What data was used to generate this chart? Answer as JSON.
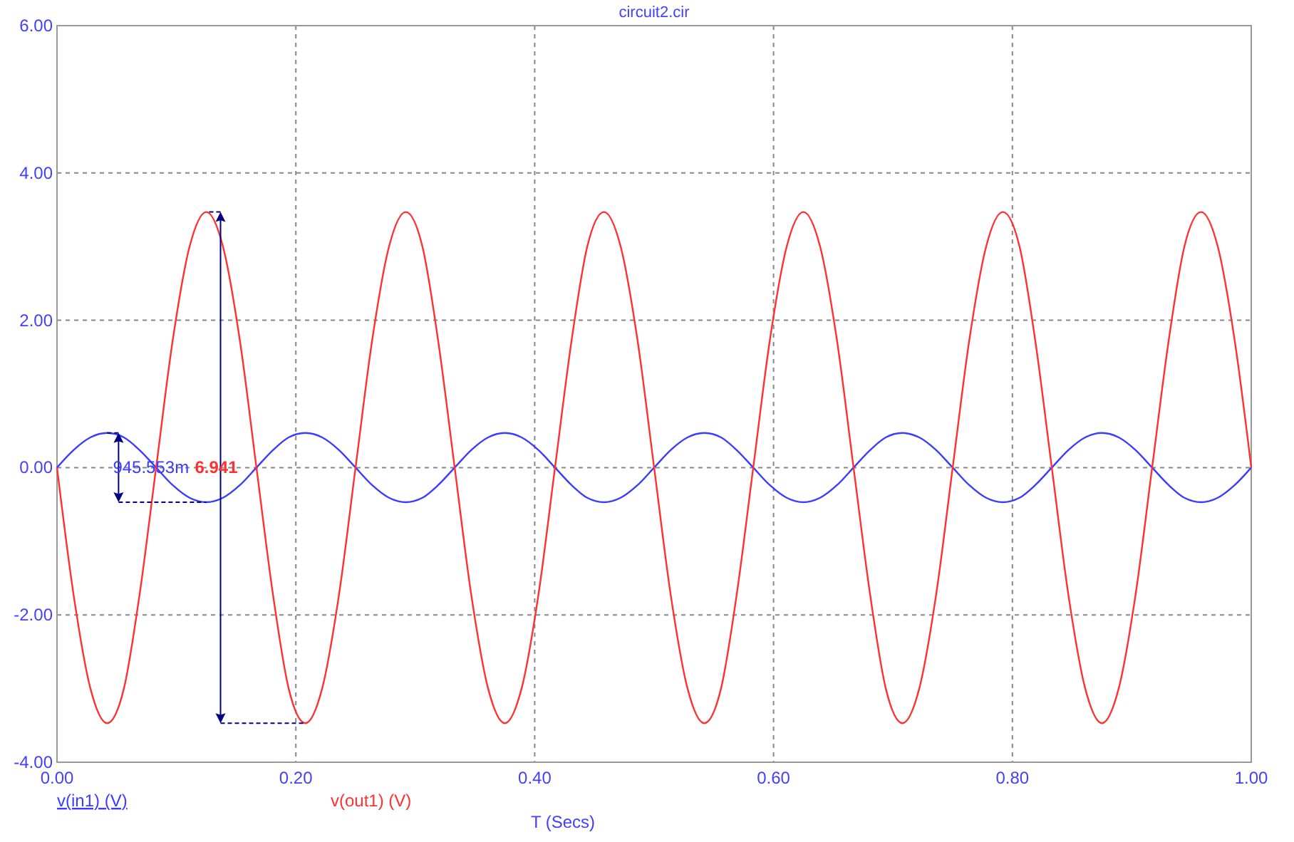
{
  "chart_data": {
    "type": "line",
    "title": "circuit2.cir",
    "xlabel": "T (Secs)",
    "x": [
      0,
      0.014,
      0.028,
      0.042,
      0.056,
      0.069,
      0.083,
      0.097,
      0.111,
      0.125,
      0.139,
      0.153,
      0.167,
      0.181,
      0.194,
      0.208,
      0.222,
      0.236,
      0.25,
      0.264,
      0.278,
      0.292,
      0.306,
      0.319,
      0.333,
      0.347,
      0.361,
      0.375,
      0.389,
      0.403,
      0.417,
      0.431,
      0.444,
      0.458,
      0.472,
      0.486,
      0.5,
      0.514,
      0.528,
      0.542,
      0.556,
      0.569,
      0.583,
      0.597,
      0.611,
      0.625,
      0.639,
      0.653,
      0.667,
      0.681,
      0.694,
      0.708,
      0.722,
      0.736,
      0.75,
      0.764,
      0.778,
      0.792,
      0.806,
      0.819,
      0.833,
      0.847,
      0.861,
      0.875,
      0.889,
      0.903,
      0.917,
      0.931,
      0.944,
      0.958,
      0.972,
      0.986,
      1
    ],
    "series": [
      {
        "name": "v(in1) (V)",
        "color": "#3c3cff",
        "values": [
          0,
          0.24,
          0.41,
          0.47,
          0.41,
          0.24,
          0,
          -0.24,
          -0.41,
          -0.47,
          -0.41,
          -0.24,
          0,
          0.24,
          0.41,
          0.47,
          0.41,
          0.24,
          0,
          -0.24,
          -0.41,
          -0.47,
          -0.41,
          -0.24,
          0,
          0.24,
          0.41,
          0.47,
          0.41,
          0.24,
          0,
          -0.24,
          -0.41,
          -0.47,
          -0.41,
          -0.24,
          0,
          0.24,
          0.41,
          0.47,
          0.41,
          0.24,
          0,
          -0.24,
          -0.41,
          -0.47,
          -0.41,
          -0.24,
          0,
          0.24,
          0.41,
          0.47,
          0.41,
          0.24,
          0,
          -0.24,
          -0.41,
          -0.47,
          -0.41,
          -0.24,
          0,
          0.24,
          0.41,
          0.47,
          0.41,
          0.24,
          0,
          -0.24,
          -0.41,
          -0.47,
          -0.41,
          -0.24,
          0
        ]
      },
      {
        "name": "v(out1) (V)",
        "color": "#ff3030",
        "values": [
          0,
          -1.74,
          -3.0,
          -3.47,
          -3.0,
          -1.74,
          0,
          1.74,
          3.0,
          3.47,
          3.0,
          1.74,
          0,
          -1.74,
          -3.0,
          -3.47,
          -3.0,
          -1.74,
          0,
          1.74,
          3.0,
          3.47,
          3.0,
          1.74,
          0,
          -1.74,
          -3.0,
          -3.47,
          -3.0,
          -1.74,
          0,
          1.74,
          3.0,
          3.47,
          3.0,
          1.74,
          0,
          -1.74,
          -3.0,
          -3.47,
          -3.0,
          -1.74,
          0,
          1.74,
          3.0,
          3.47,
          3.0,
          1.74,
          0,
          -1.74,
          -3.0,
          -3.47,
          -3.0,
          -1.74,
          0,
          1.74,
          3.0,
          3.47,
          3.0,
          1.74,
          0,
          -1.74,
          -3.0,
          -3.47,
          -3.0,
          -1.74,
          0,
          1.74,
          3.0,
          3.47,
          3.0,
          1.74,
          0
        ]
      }
    ],
    "annotations": [
      "945.553m",
      "6.941"
    ],
    "xlim": [
      0,
      1
    ],
    "ylim": [
      -4,
      6
    ],
    "xticks": [
      {
        "value": 0,
        "label": "0.00"
      },
      {
        "value": 0.2,
        "label": "0.20"
      },
      {
        "value": 0.4,
        "label": "0.40"
      },
      {
        "value": 0.6,
        "label": "0.60"
      },
      {
        "value": 0.8,
        "label": "0.80"
      },
      {
        "value": 1,
        "label": "1.00"
      }
    ],
    "yticks": [
      {
        "value": -4,
        "label": "-4.00"
      },
      {
        "value": -2,
        "label": "-2.00"
      },
      {
        "value": 0,
        "label": "0.00"
      },
      {
        "value": 2,
        "label": "2.00"
      },
      {
        "value": 4,
        "label": "4.00"
      },
      {
        "value": 6,
        "label": "6.00"
      }
    ],
    "grid": true,
    "legend": "bottom left",
    "marker": "none",
    "line_style": "solid"
  }
}
